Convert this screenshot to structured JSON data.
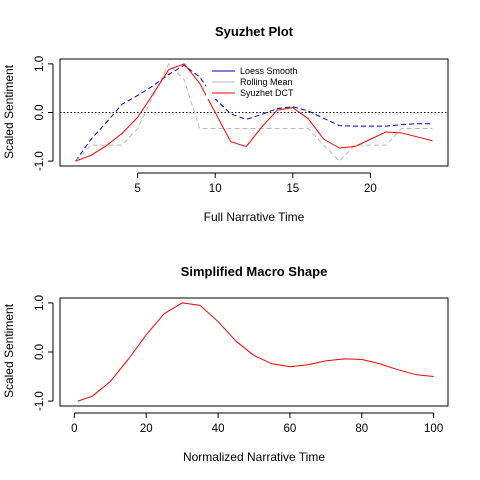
{
  "chart_data": [
    {
      "type": "line",
      "title": "Syuzhet Plot",
      "xlabel": "Full Narrative Time",
      "ylabel": "Scaled Sentiment",
      "xlim": [
        0,
        25
      ],
      "ylim": [
        -1.1,
        1.1
      ],
      "xticks": [
        5,
        10,
        15,
        20
      ],
      "yticks": [
        -1.0,
        0.0,
        1.0
      ],
      "ytick_labels": [
        "-1.0",
        "0.0",
        "1.0"
      ],
      "reference_line": {
        "y": 0,
        "style": "dotted",
        "color": "#000000"
      },
      "legend": {
        "placement": "top-center"
      },
      "x": [
        1,
        2,
        3,
        4,
        5,
        6,
        7,
        8,
        9,
        10,
        11,
        12,
        13,
        14,
        15,
        16,
        17,
        18,
        19,
        20,
        21,
        22,
        23,
        24
      ],
      "series": [
        {
          "name": "Loess Smooth",
          "color": "#0000CD",
          "style": "dashed",
          "values": [
            -1.0,
            -0.55,
            -0.2,
            0.17,
            0.35,
            0.55,
            0.78,
            0.97,
            0.73,
            0.28,
            -0.03,
            -0.14,
            -0.04,
            0.08,
            0.12,
            0.03,
            -0.12,
            -0.27,
            -0.28,
            -0.28,
            -0.28,
            -0.25,
            -0.23,
            -0.23
          ]
        },
        {
          "name": "Rolling Mean",
          "color": "#BBBBBB",
          "style": "dashed",
          "values": [
            -1.0,
            -0.67,
            -0.67,
            -0.67,
            -0.33,
            0.33,
            1.0,
            0.67,
            -0.33,
            -0.33,
            -0.33,
            -0.33,
            -0.33,
            -0.33,
            -0.33,
            -0.33,
            -0.67,
            -1.0,
            -0.67,
            -0.67,
            -0.67,
            -0.33,
            -0.33,
            -0.33
          ]
        },
        {
          "name": "Syuzhet DCT",
          "color": "#FF0000",
          "style": "solid",
          "values": [
            -1.0,
            -0.88,
            -0.68,
            -0.43,
            -0.1,
            0.38,
            0.88,
            1.0,
            0.6,
            0.0,
            -0.6,
            -0.7,
            -0.3,
            0.05,
            0.1,
            -0.13,
            -0.55,
            -0.73,
            -0.7,
            -0.55,
            -0.4,
            -0.42,
            -0.5,
            -0.58
          ]
        }
      ]
    },
    {
      "type": "line",
      "title": "Simplified Macro Shape",
      "xlabel": "Normalized Narrative Time",
      "ylabel": "Scaled Sentiment",
      "xlim": [
        -4,
        104
      ],
      "ylim": [
        -1.1,
        1.1
      ],
      "xticks": [
        0,
        20,
        40,
        60,
        80,
        100
      ],
      "yticks": [
        -1.0,
        0.0,
        1.0
      ],
      "ytick_labels": [
        "-1.0",
        "0.0",
        "1.0"
      ],
      "series": [
        {
          "color": "#FF0000",
          "style": "solid",
          "x": [
            1,
            5,
            10,
            15,
            20,
            25,
            30,
            35,
            40,
            45,
            50,
            55,
            60,
            65,
            70,
            75,
            80,
            85,
            90,
            95,
            100
          ],
          "values": [
            -1.0,
            -0.9,
            -0.6,
            -0.15,
            0.35,
            0.78,
            1.0,
            0.95,
            0.62,
            0.22,
            -0.07,
            -0.24,
            -0.3,
            -0.26,
            -0.18,
            -0.14,
            -0.15,
            -0.24,
            -0.36,
            -0.46,
            -0.5
          ]
        }
      ]
    }
  ]
}
